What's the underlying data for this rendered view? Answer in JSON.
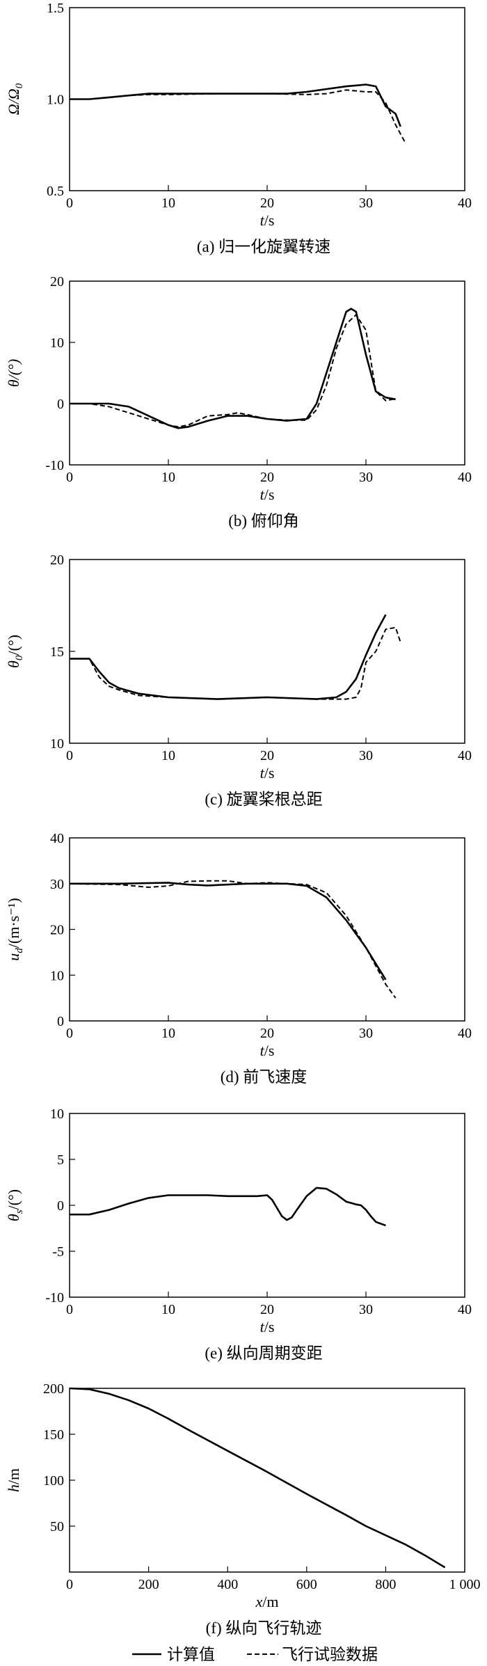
{
  "figure": {
    "legend": {
      "computed": "计算值",
      "flight_test": "飞行试验数据"
    }
  },
  "chart_data": [
    {
      "type": "line",
      "caption": "(a) 归一化旋翼转速",
      "xlabel_var": "t",
      "xlabel_unit": "/s",
      "ylabel": "Ω/Ω",
      "ylabel_sub": "0",
      "ylabel_tail": "",
      "xlim": [
        0,
        40
      ],
      "ylim": [
        0.5,
        1.5
      ],
      "xticks": [
        "0",
        "10",
        "20",
        "30",
        "40"
      ],
      "yticks": [
        "0.5",
        "1.0",
        "1.5"
      ],
      "series": [
        {
          "style": "solid",
          "x": [
            0,
            2,
            4,
            6,
            8,
            10,
            15,
            20,
            22,
            24,
            26,
            28,
            30,
            31,
            32,
            33,
            33.5
          ],
          "y": [
            1.0,
            1.0,
            1.01,
            1.02,
            1.03,
            1.03,
            1.03,
            1.03,
            1.03,
            1.04,
            1.055,
            1.07,
            1.08,
            1.07,
            0.96,
            0.92,
            0.85
          ]
        },
        {
          "style": "dashed",
          "x": [
            0,
            2,
            4,
            6,
            8,
            10,
            15,
            20,
            24,
            26,
            28,
            30,
            31,
            32,
            33,
            34
          ],
          "y": [
            1.0,
            1.0,
            1.01,
            1.02,
            1.025,
            1.025,
            1.03,
            1.03,
            1.025,
            1.03,
            1.05,
            1.04,
            1.04,
            0.98,
            0.86,
            0.76
          ]
        }
      ]
    },
    {
      "type": "line",
      "caption": "(b) 俯仰角",
      "xlabel_var": "t",
      "xlabel_unit": "/s",
      "ylabel": "θ/(°)",
      "ylabel_sub": "",
      "ylabel_tail": "",
      "xlim": [
        0,
        40
      ],
      "ylim": [
        -10,
        20
      ],
      "xticks": [
        "0",
        "10",
        "20",
        "30",
        "40"
      ],
      "yticks": [
        "-10",
        "0",
        "10",
        "20"
      ],
      "series": [
        {
          "style": "solid",
          "x": [
            0,
            2,
            4,
            6,
            8,
            10,
            11,
            12,
            14,
            16,
            18,
            20,
            22,
            24,
            25,
            26,
            27,
            28,
            28.5,
            29,
            30,
            31,
            32,
            33
          ],
          "y": [
            0,
            0,
            0,
            -0.5,
            -2,
            -3.5,
            -4,
            -3.8,
            -2.8,
            -2,
            -2,
            -2.5,
            -2.8,
            -2.5,
            0,
            5,
            10,
            15,
            15.5,
            15,
            8,
            2,
            1,
            0.7
          ]
        },
        {
          "style": "dashed",
          "x": [
            0,
            2,
            4,
            6,
            8,
            10,
            11,
            12,
            14,
            16,
            17,
            18,
            20,
            22,
            24,
            25,
            26,
            27,
            28,
            29,
            30,
            31,
            32,
            33
          ],
          "y": [
            0,
            0,
            -0.5,
            -1.5,
            -2.5,
            -3.5,
            -3.8,
            -3.5,
            -2,
            -1.8,
            -1.5,
            -1.8,
            -2.5,
            -2.7,
            -2.7,
            -1,
            3,
            9,
            13,
            14.5,
            12,
            2,
            0.5,
            0.8
          ]
        }
      ]
    },
    {
      "type": "line",
      "caption": "(c) 旋翼桨根总距",
      "xlabel_var": "t",
      "xlabel_unit": "/s",
      "ylabel": "θ",
      "ylabel_sub": "0",
      "ylabel_tail": "/(°)",
      "xlim": [
        0,
        40
      ],
      "ylim": [
        10,
        20
      ],
      "xticks": [
        "0",
        "10",
        "20",
        "30",
        "40"
      ],
      "yticks": [
        "10",
        "15",
        "20"
      ],
      "series": [
        {
          "style": "solid",
          "x": [
            0,
            2,
            3,
            4,
            5,
            7,
            10,
            15,
            20,
            25,
            27,
            28,
            29,
            30,
            31,
            32
          ],
          "y": [
            14.6,
            14.6,
            13.9,
            13.3,
            13.0,
            12.7,
            12.5,
            12.4,
            12.5,
            12.4,
            12.5,
            12.8,
            13.5,
            14.8,
            16.0,
            17.0
          ]
        },
        {
          "style": "dashed",
          "x": [
            0,
            2,
            3,
            4,
            5,
            7,
            10,
            15,
            20,
            25,
            28,
            29,
            29.5,
            30,
            31,
            32,
            33,
            33.5
          ],
          "y": [
            14.6,
            14.6,
            13.6,
            13.1,
            12.9,
            12.6,
            12.5,
            12.4,
            12.5,
            12.4,
            12.4,
            12.5,
            13.0,
            14.4,
            15.0,
            16.2,
            16.3,
            15.5
          ]
        }
      ]
    },
    {
      "type": "line",
      "caption": "(d) 前飞速度",
      "xlabel_var": "t",
      "xlabel_unit": "/s",
      "ylabel": "u",
      "ylabel_sub": "d",
      "ylabel_tail": "/(m·s⁻¹)",
      "xlim": [
        0,
        40
      ],
      "ylim": [
        0,
        40
      ],
      "xticks": [
        "0",
        "10",
        "20",
        "30",
        "40"
      ],
      "yticks": [
        "0",
        "10",
        "20",
        "30",
        "40"
      ],
      "series": [
        {
          "style": "solid",
          "x": [
            0,
            5,
            10,
            12,
            14,
            16,
            18,
            20,
            22,
            24,
            26,
            28,
            30,
            32
          ],
          "y": [
            30,
            30,
            30.2,
            29.8,
            29.6,
            29.8,
            30,
            30,
            30,
            29.5,
            27,
            22,
            16,
            9
          ]
        },
        {
          "style": "dashed",
          "x": [
            0,
            5,
            8,
            10,
            12,
            14,
            16,
            18,
            20,
            22,
            24,
            26,
            28,
            30,
            31,
            32,
            33
          ],
          "y": [
            30,
            29.8,
            29.2,
            29.5,
            30.5,
            30.6,
            30.6,
            30,
            30.2,
            30,
            29.8,
            28,
            23,
            16,
            12,
            8,
            5
          ]
        }
      ]
    },
    {
      "type": "line",
      "caption": "(e) 纵向周期变距",
      "xlabel_var": "t",
      "xlabel_unit": "/s",
      "ylabel": "θ",
      "ylabel_sub": "s",
      "ylabel_tail": "/(°)",
      "xlim": [
        0,
        40
      ],
      "ylim": [
        -10,
        10
      ],
      "xticks": [
        "0",
        "10",
        "20",
        "30",
        "40"
      ],
      "yticks": [
        "-10",
        "-5",
        "0",
        "5",
        "10"
      ],
      "series": [
        {
          "style": "solid",
          "x": [
            0,
            2,
            4,
            6,
            8,
            10,
            12,
            14,
            16,
            18,
            19,
            20,
            20.5,
            21,
            21.5,
            22,
            22.5,
            23,
            24,
            25,
            26,
            27,
            28,
            29,
            29.5,
            30,
            30.5,
            31,
            32
          ],
          "y": [
            -1,
            -1,
            -0.5,
            0.2,
            0.8,
            1.1,
            1.1,
            1.1,
            1.0,
            1.0,
            1.0,
            1.1,
            0.6,
            -0.3,
            -1.2,
            -1.6,
            -1.3,
            -0.5,
            1.0,
            1.9,
            1.8,
            1.2,
            0.4,
            0.1,
            0,
            -0.5,
            -1.2,
            -1.8,
            -2.2
          ]
        }
      ]
    },
    {
      "type": "line",
      "caption": "(f) 纵向飞行轨迹",
      "xlabel_var": "x",
      "xlabel_unit": "/m",
      "ylabel": "h",
      "ylabel_sub": "",
      "ylabel_tail": "/m",
      "xlim": [
        0,
        1000
      ],
      "ylim": [
        0,
        200
      ],
      "xticks": [
        "0",
        "200",
        "400",
        "600",
        "800",
        "1 000"
      ],
      "yticks": [
        "50",
        "100",
        "150",
        "200"
      ],
      "series": [
        {
          "style": "solid",
          "x": [
            0,
            50,
            100,
            150,
            200,
            250,
            300,
            400,
            500,
            600,
            700,
            750,
            800,
            850,
            900,
            950
          ],
          "y": [
            200,
            199,
            194,
            187,
            178,
            167,
            155,
            132,
            109,
            85,
            62,
            50,
            40,
            30,
            18,
            5
          ]
        }
      ]
    }
  ]
}
